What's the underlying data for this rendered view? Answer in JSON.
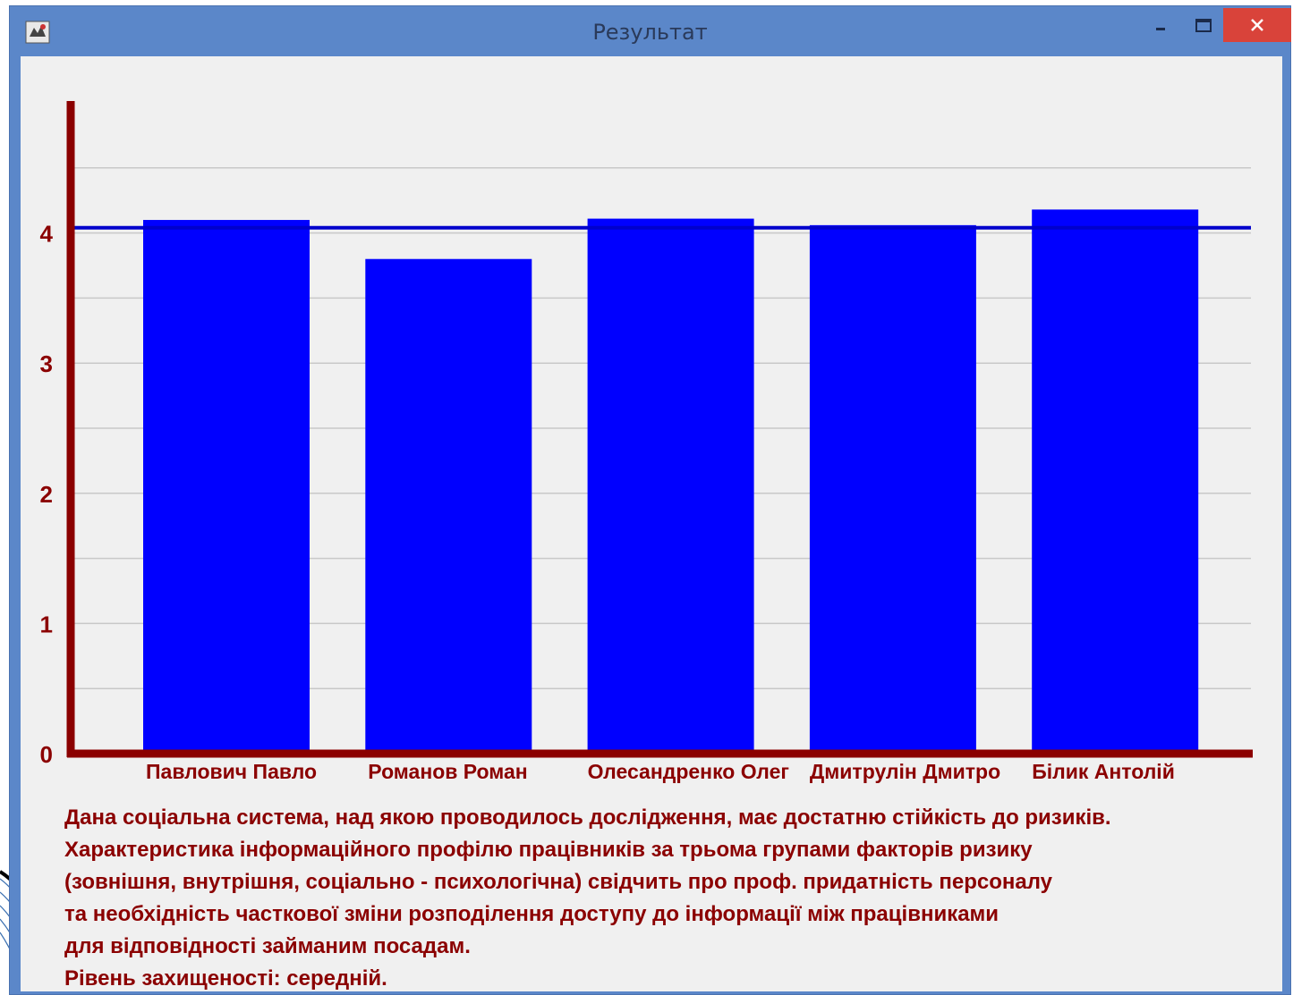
{
  "window": {
    "title": "Результат"
  },
  "colors": {
    "titlebar": "#5b87c9",
    "close": "#d9433a",
    "axis": "#8b0000",
    "bar": "#0000ff",
    "reference_line": "#0000cc",
    "grid": "#c8c8c8",
    "text": "#8b0000"
  },
  "icons": {
    "app": "app-icon",
    "minimize": "minimize-icon",
    "maximize": "maximize-icon",
    "close": "close-icon"
  },
  "chart_data": {
    "type": "bar",
    "categories": [
      "Павлович Павло",
      "Романов Роман",
      "Олесандренко Олег",
      "Дмитрулін Дмитро",
      "Білик Антолій"
    ],
    "values": [
      4.1,
      3.8,
      4.11,
      4.06,
      4.18
    ],
    "reference_line": 4.04,
    "yticks": [
      "0",
      "1",
      "2",
      "3",
      "4"
    ],
    "ylim": [
      0,
      5
    ],
    "grid": true,
    "title": "",
    "xlabel": "",
    "ylabel": ""
  },
  "description": {
    "lines": [
      "Дана соціальна система, над якою проводилось дослідження, має достатню стійкість до ризиків.",
      "Характеристика інформаційного профілю працівників за трьома групами факторів ризику",
      "(зовнішня, внутрішня, соціально - психологічна) свідчить про проф. придатність персоналу",
      "та необхідність часткової зміни розподілення доступу до інформації між працівниками",
      "для відповідності займаним посадам.",
      "Рівень захищеності: середній."
    ]
  }
}
